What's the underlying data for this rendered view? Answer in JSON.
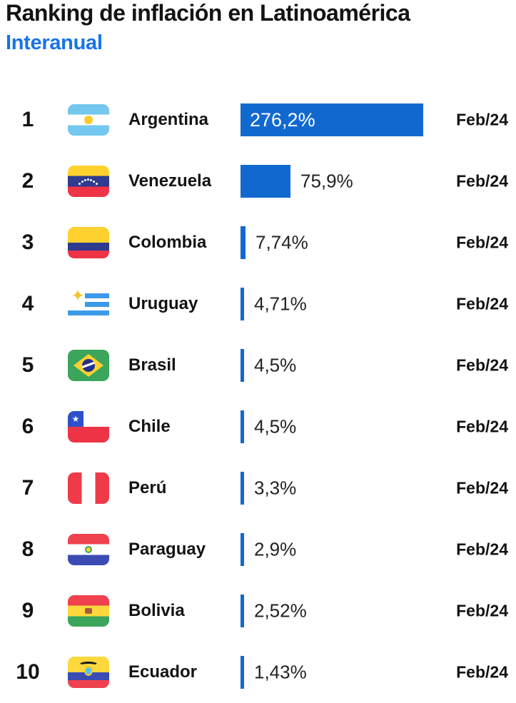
{
  "header": {
    "title": "Ranking de inflación en Latinoamérica",
    "subtitle": "Interanual"
  },
  "colors": {
    "bar_blue": "#1169D0",
    "subtitle_blue": "#1673E8",
    "text_black": "#131313"
  },
  "chart_data": {
    "type": "bar",
    "orientation": "horizontal",
    "title": "Ranking de inflación en Latinoamérica",
    "subtitle": "Interanual",
    "unit": "%",
    "value_axis_max": 276.2,
    "categories": [
      "Argentina",
      "Venezuela",
      "Colombia",
      "Uruguay",
      "Brasil",
      "Chile",
      "Perú",
      "Paraguay",
      "Bolivia",
      "Ecuador"
    ],
    "values": [
      276.2,
      75.9,
      7.74,
      4.71,
      4.5,
      4.5,
      3.3,
      2.9,
      2.52,
      1.43
    ],
    "rows": [
      {
        "rank": "1",
        "country": "Argentina",
        "flag": "argentina-flag-icon",
        "value": 276.2,
        "value_label": "276,2%",
        "period": "Feb/24"
      },
      {
        "rank": "2",
        "country": "Venezuela",
        "flag": "venezuela-flag-icon",
        "value": 75.9,
        "value_label": "75,9%",
        "period": "Feb/24"
      },
      {
        "rank": "3",
        "country": "Colombia",
        "flag": "colombia-flag-icon",
        "value": 7.74,
        "value_label": "7,74%",
        "period": "Feb/24"
      },
      {
        "rank": "4",
        "country": "Uruguay",
        "flag": "uruguay-flag-icon",
        "value": 4.71,
        "value_label": "4,71%",
        "period": "Feb/24"
      },
      {
        "rank": "5",
        "country": "Brasil",
        "flag": "brasil-flag-icon",
        "value": 4.5,
        "value_label": "4,5%",
        "period": "Feb/24"
      },
      {
        "rank": "6",
        "country": "Chile",
        "flag": "chile-flag-icon",
        "value": 4.5,
        "value_label": "4,5%",
        "period": "Feb/24"
      },
      {
        "rank": "7",
        "country": "Perú",
        "flag": "peru-flag-icon",
        "value": 3.3,
        "value_label": "3,3%",
        "period": "Feb/24"
      },
      {
        "rank": "8",
        "country": "Paraguay",
        "flag": "paraguay-flag-icon",
        "value": 2.9,
        "value_label": "2,9%",
        "period": "Feb/24"
      },
      {
        "rank": "9",
        "country": "Bolivia",
        "flag": "bolivia-flag-icon",
        "value": 2.52,
        "value_label": "2,52%",
        "period": "Feb/24"
      },
      {
        "rank": "10",
        "country": "Ecuador",
        "flag": "ecuador-flag-icon",
        "value": 1.43,
        "value_label": "1,43%",
        "period": "Feb/24"
      }
    ]
  }
}
